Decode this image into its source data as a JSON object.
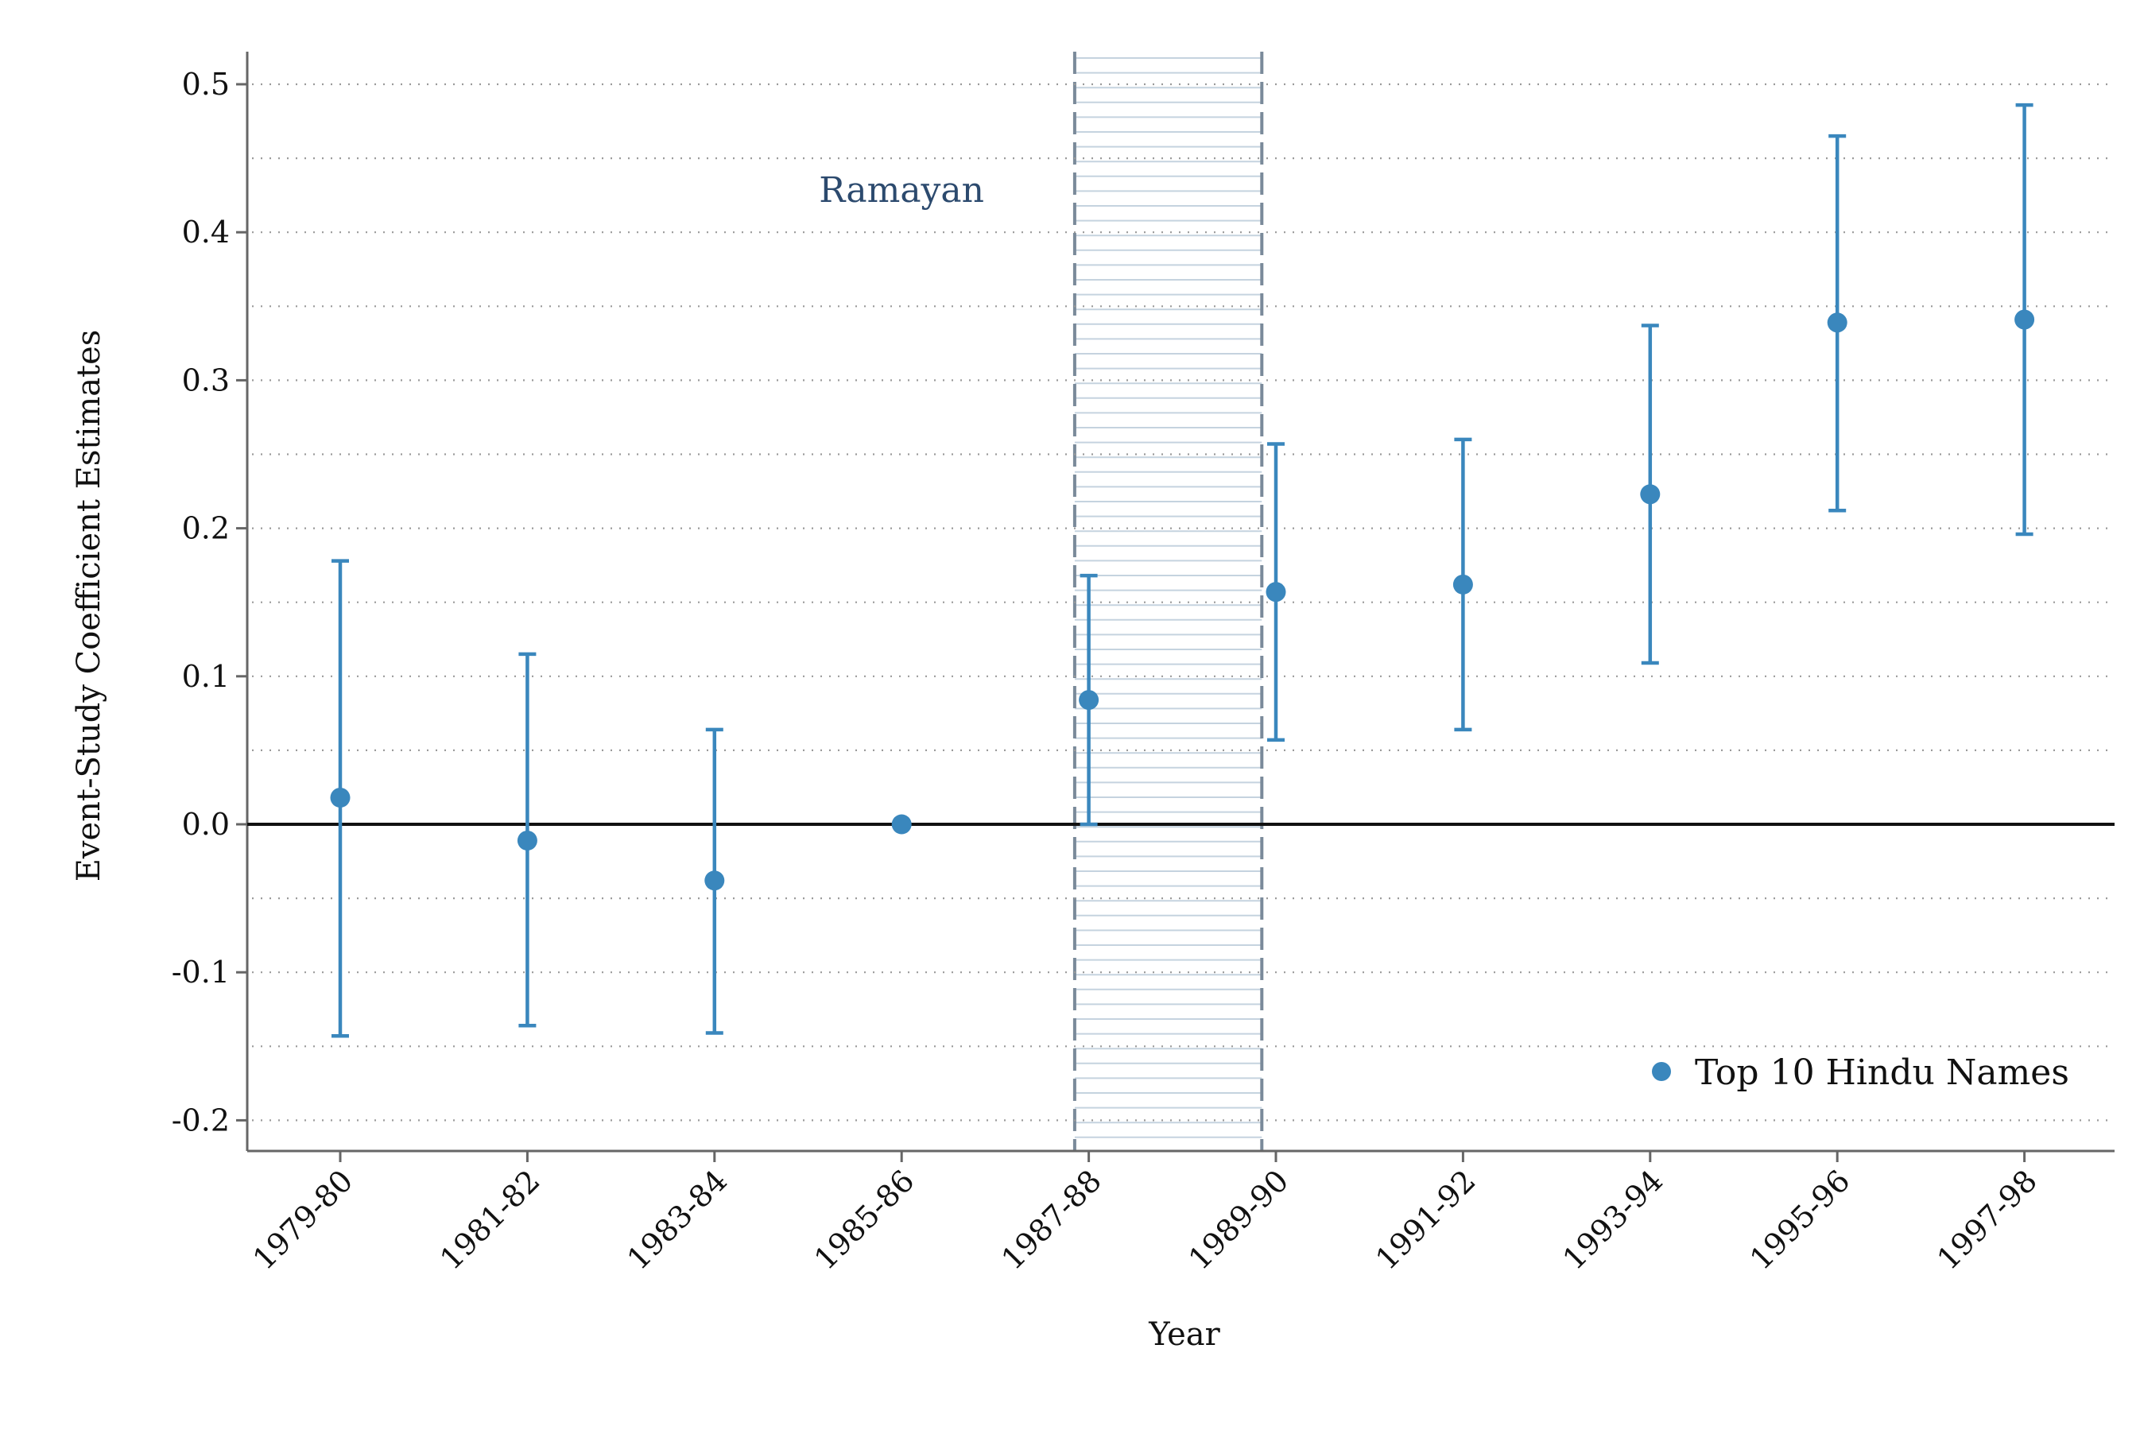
{
  "chart_data": {
    "type": "scatter",
    "title": "",
    "xlabel": "Year",
    "ylabel": "Event-Study Coefficient Estimates",
    "categories": [
      "1979-80",
      "1981-82",
      "1983-84",
      "1985-86",
      "1987-88",
      "1989-90",
      "1991-92",
      "1993-94",
      "1995-96",
      "1997-98"
    ],
    "series": [
      {
        "name": "Top 10 Hindu Names",
        "values": [
          0.018,
          -0.011,
          -0.038,
          0.0,
          0.084,
          0.157,
          0.162,
          0.223,
          0.339,
          0.341
        ],
        "ci_lower": [
          -0.143,
          -0.136,
          -0.141,
          null,
          0.0,
          0.057,
          0.064,
          0.109,
          0.212,
          0.196
        ],
        "ci_upper": [
          0.178,
          0.115,
          0.064,
          null,
          0.168,
          0.257,
          0.26,
          0.337,
          0.465,
          0.486
        ]
      }
    ],
    "ylim": [
      -0.22,
      0.52
    ],
    "yticks": [
      -0.2,
      -0.1,
      0.0,
      0.1,
      0.2,
      0.3,
      0.4,
      0.5
    ],
    "ytick_labels": [
      "-0.2",
      "-0.1",
      "0.0",
      "0.1",
      "0.2",
      "0.3",
      "0.4",
      "0.5"
    ],
    "grid": true,
    "legend": "bottom-right",
    "reference_line_y": 0.0,
    "shaded_region": {
      "from_category": "1985-86",
      "to_category": "1989-90",
      "label": "Ramayan"
    },
    "colors": {
      "series": "#3a87bd",
      "zero_line": "#111111",
      "grid": "#9a9a9a",
      "band_border": "#7a8a9a",
      "band_hatch": "#c5d3df",
      "annotation": "#2c4a6e",
      "axis": "#666666"
    }
  }
}
